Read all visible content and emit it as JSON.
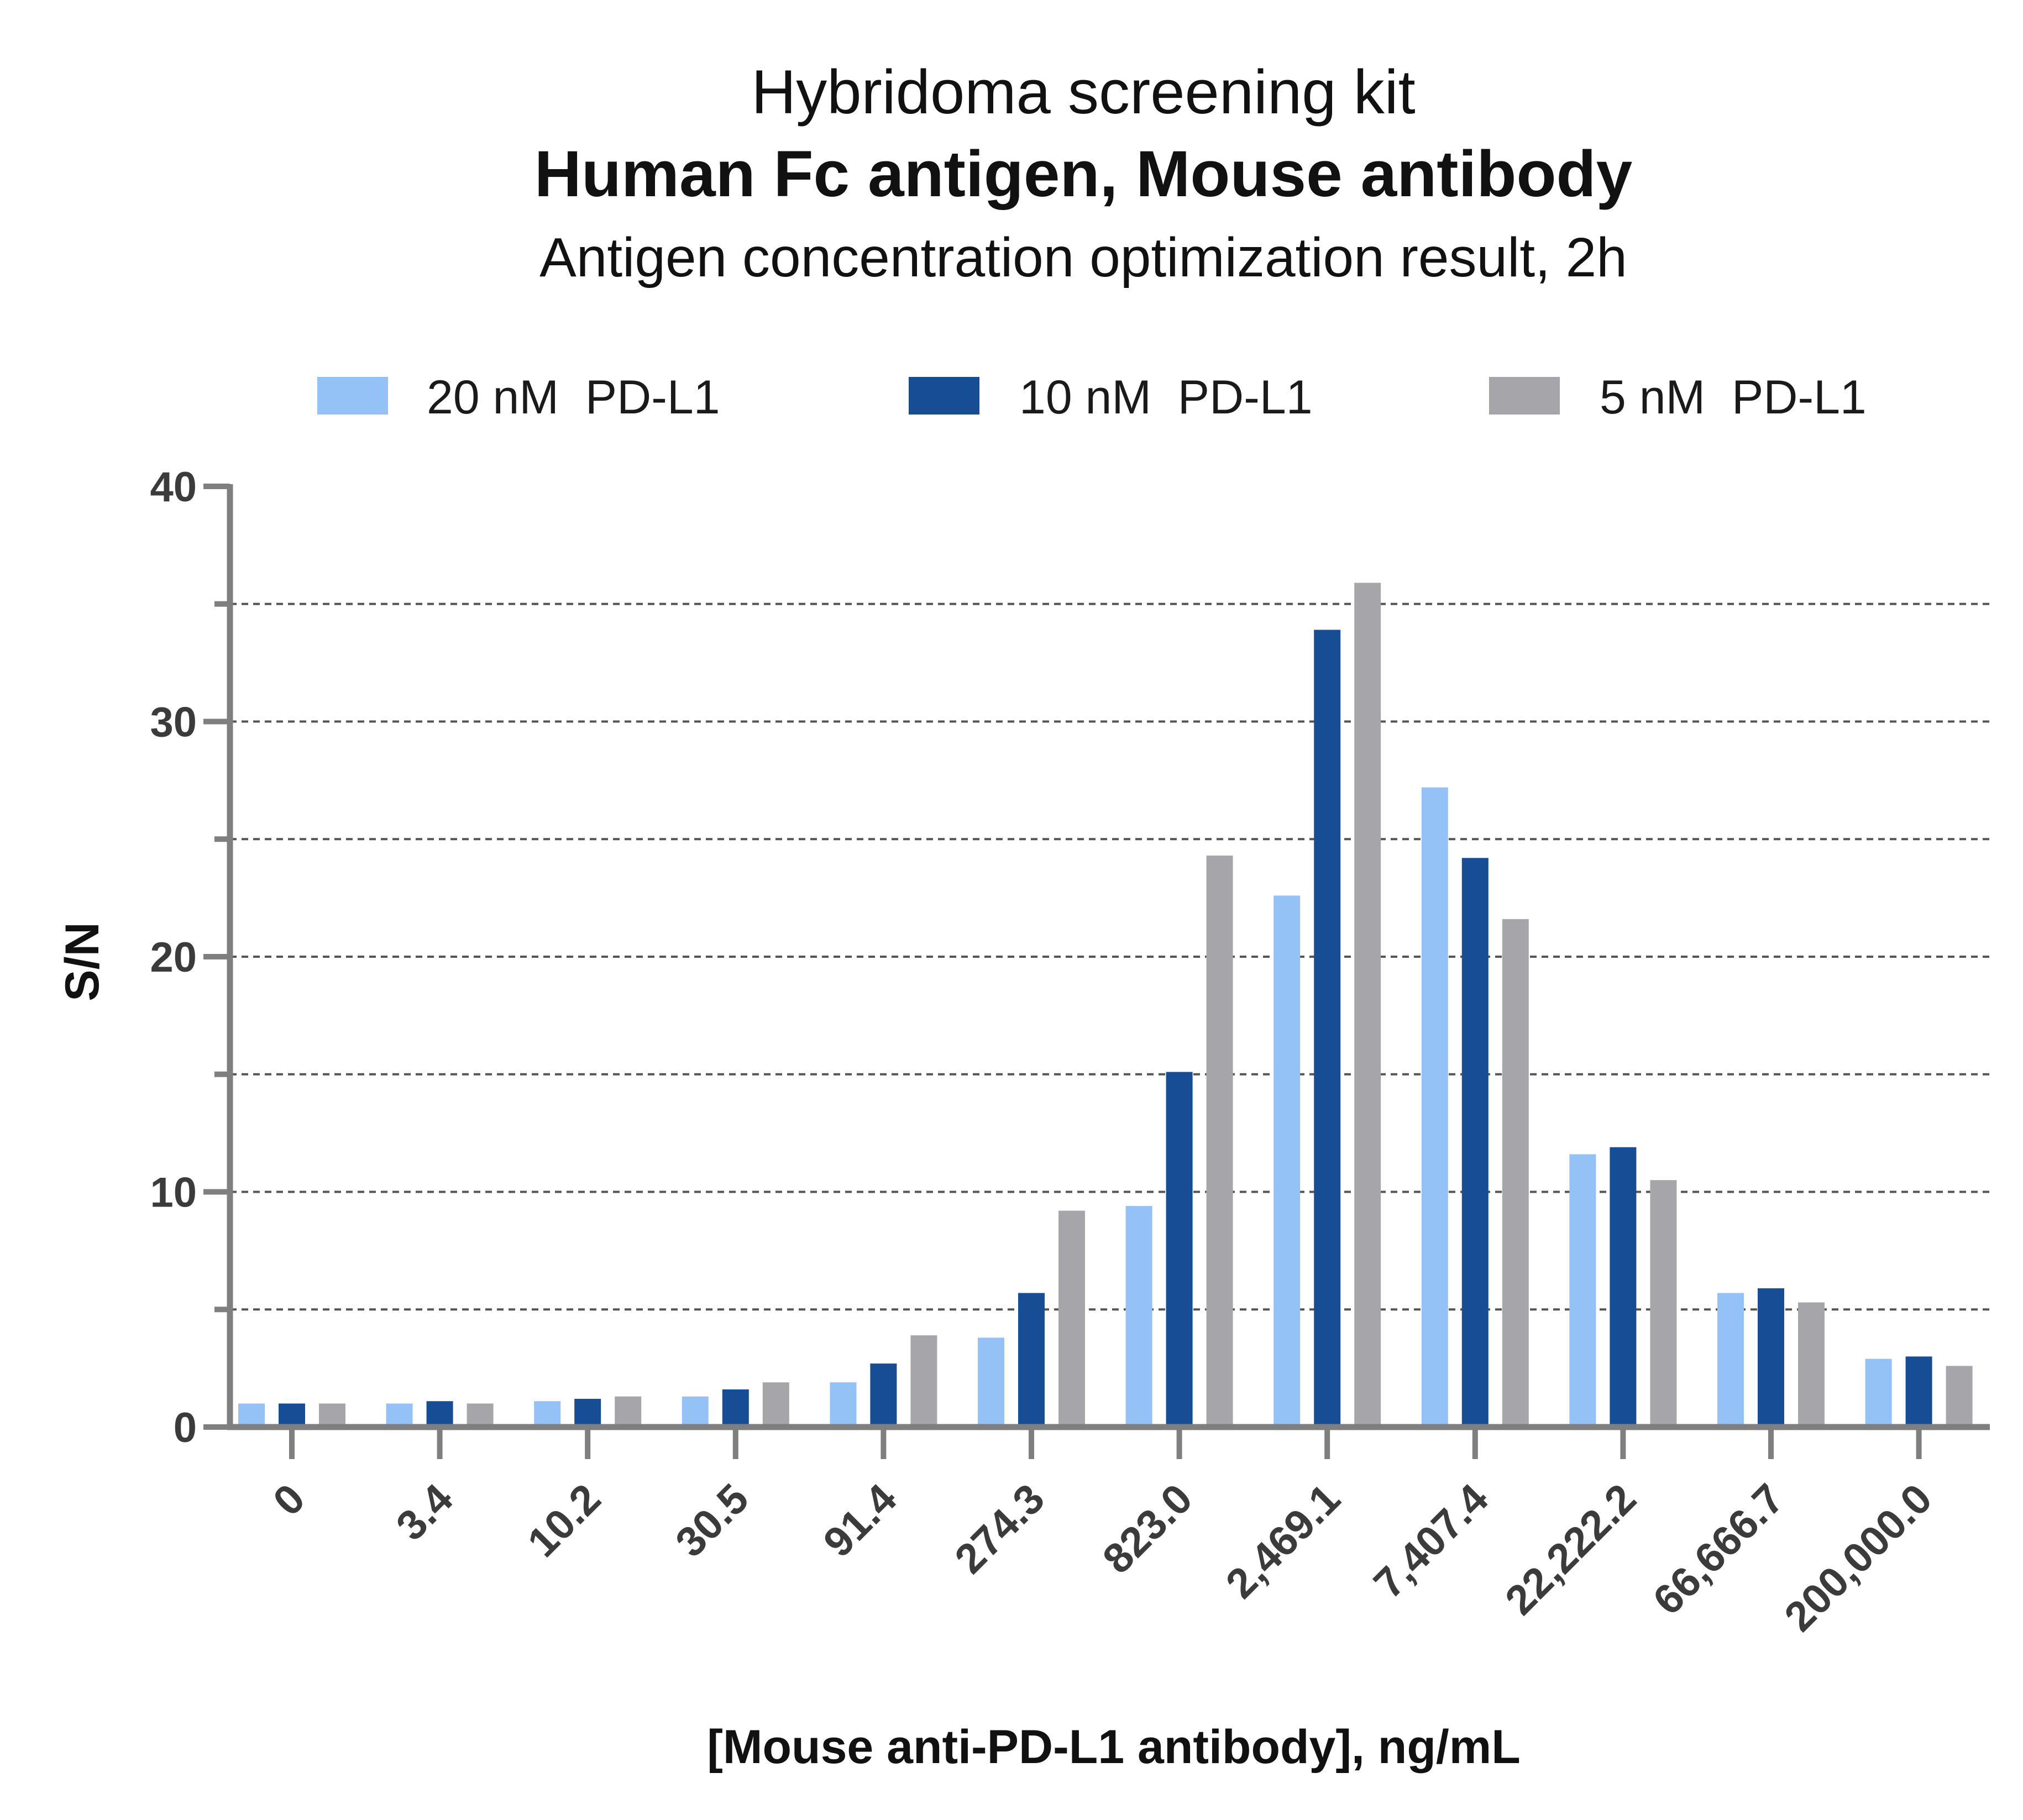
{
  "chart_data": {
    "type": "bar",
    "title": "Hybridoma screening kit",
    "subtitle": "Human Fc antigen, Mouse antibody",
    "subtitle2": "Antigen concentration optimization result, 2h",
    "xlabel": "[Mouse anti-PD-L1 antibody], ng/mL",
    "ylabel": "S/N",
    "ylim": [
      0,
      40
    ],
    "yticks": [
      0,
      10,
      20,
      30,
      40
    ],
    "ytick_labels": [
      "0",
      "10",
      "20",
      "30",
      "40"
    ],
    "gridlines": [
      5,
      10,
      15,
      20,
      25,
      30,
      35
    ],
    "grid": true,
    "legend_position": "top",
    "categories": [
      "0",
      "3.4",
      "10.2",
      "30.5",
      "91.4",
      "274.3",
      "823.0",
      "2,469.1",
      "7,407.4",
      "22,222.2",
      "66,666.7",
      "200,000.0"
    ],
    "series": [
      {
        "name": "20 nM  PD-L1",
        "color": "#94c2f7",
        "values": [
          1.0,
          1.0,
          1.1,
          1.3,
          1.9,
          3.8,
          9.4,
          22.6,
          27.2,
          11.6,
          5.7,
          2.9
        ]
      },
      {
        "name": "10 nM  PD-L1",
        "color": "#174d94",
        "values": [
          1.0,
          1.1,
          1.2,
          1.6,
          2.7,
          5.7,
          15.1,
          33.9,
          24.2,
          11.9,
          5.9,
          3.0
        ]
      },
      {
        "name": "5 nM  PD-L1",
        "color": "#a6a6aa",
        "values": [
          1.0,
          1.0,
          1.3,
          1.9,
          3.9,
          9.2,
          24.3,
          35.9,
          21.6,
          10.5,
          5.3,
          2.6
        ]
      }
    ]
  }
}
